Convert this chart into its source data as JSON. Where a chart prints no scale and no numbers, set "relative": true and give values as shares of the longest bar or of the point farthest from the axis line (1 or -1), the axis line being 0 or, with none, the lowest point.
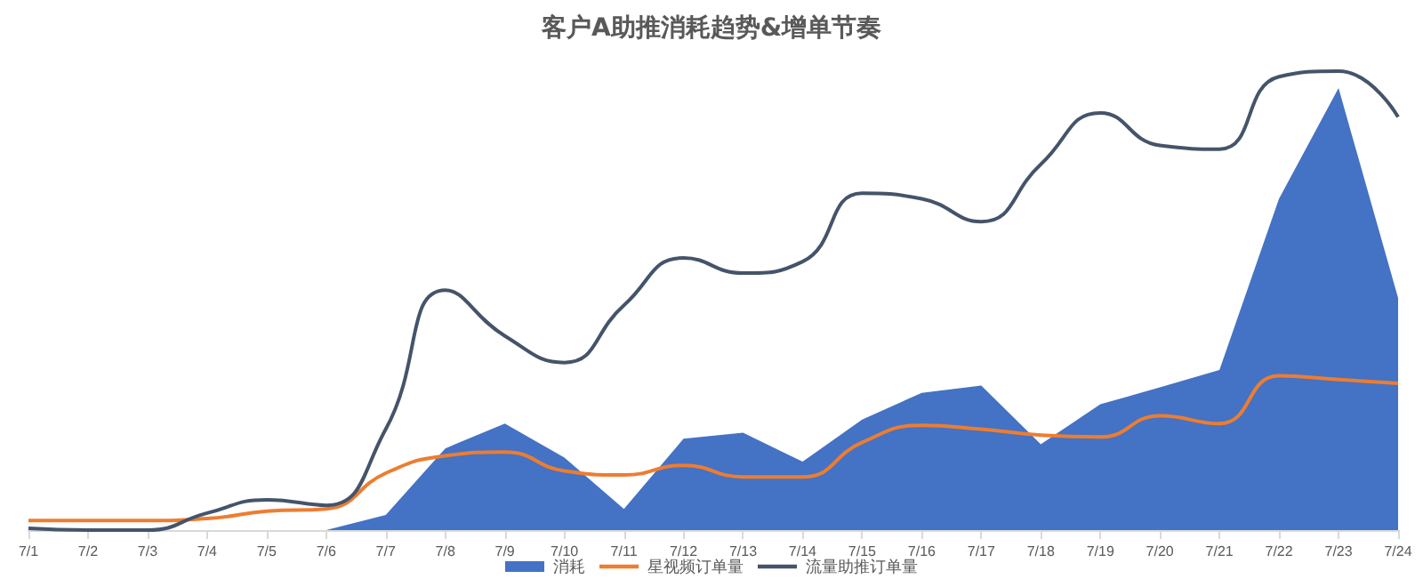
{
  "chart_data": {
    "type": "area",
    "title": "客户A助推消耗趋势&增单节奏",
    "relative": true,
    "legend": "bottom",
    "grid": false,
    "marker": "none",
    "categories": [
      "7/1",
      "7/2",
      "7/3",
      "7/4",
      "7/5",
      "7/6",
      "7/7",
      "7/8",
      "7/9",
      "7/10",
      "7/11",
      "7/12",
      "7/13",
      "7/14",
      "7/15",
      "7/16",
      "7/17",
      "7/18",
      "7/19",
      "7/20",
      "7/21",
      "7/22",
      "7/23",
      "7/24"
    ],
    "series": [
      {
        "name": "消耗",
        "color": "#4472c4",
        "values": [
          0,
          0,
          0,
          0,
          0,
          0,
          0.033,
          0.178,
          0.232,
          0.158,
          0.046,
          0.199,
          0.212,
          0.149,
          0.241,
          0.299,
          0.315,
          0.187,
          0.274,
          0.311,
          0.349,
          0.722,
          0.963,
          0.506
        ]
      },
      {
        "name": "星视频订单量",
        "type": "line",
        "color": "#ed7d31",
        "values": [
          0.021,
          0.021,
          0.021,
          0.025,
          0.041,
          0.046,
          0.124,
          0.162,
          0.17,
          0.129,
          0.12,
          0.141,
          0.116,
          0.116,
          0.191,
          0.228,
          0.22,
          0.207,
          0.203,
          0.249,
          0.232,
          0.336,
          0.328,
          0.32
        ]
      },
      {
        "name": "流量助推订单量",
        "type": "line",
        "color": "#44546a",
        "values": [
          0.004,
          0,
          0,
          0.037,
          0.066,
          0.054,
          0.22,
          0.523,
          0.423,
          0.365,
          0.49,
          0.593,
          0.56,
          0.585,
          0.734,
          0.722,
          0.672,
          0.797,
          0.909,
          0.838,
          0.83,
          0.988,
          1,
          0.9
        ]
      }
    ]
  }
}
